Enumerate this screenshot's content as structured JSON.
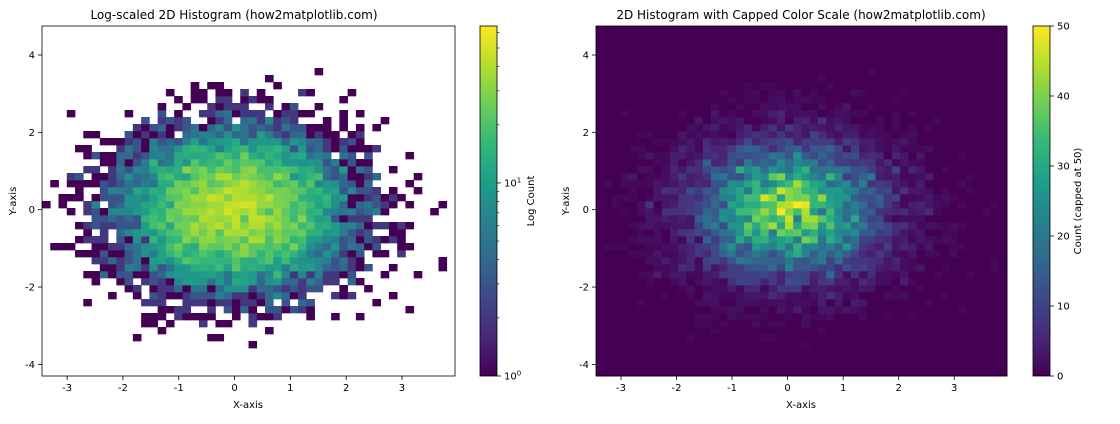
{
  "chart_data": [
    {
      "type": "heatmap",
      "title": "Log-scaled 2D Histogram (how2matplotlib.com)",
      "xlabel": "X-axis",
      "ylabel": "Y-axis",
      "xlim": [
        -3.45,
        3.95
      ],
      "ylim": [
        -4.3,
        4.75
      ],
      "xticks": [
        -3,
        -2,
        -1,
        0,
        1,
        2,
        3
      ],
      "yticks": [
        -4,
        -2,
        0,
        2,
        4
      ],
      "bins": 50,
      "distribution": {
        "kind": "2d-normal",
        "mean": [
          0,
          0
        ],
        "std": [
          1,
          1
        ],
        "samples": 10000
      },
      "color_scale": "log",
      "empty_bins": "transparent",
      "colormap": "viridis",
      "colorbar": {
        "label": "Log Count",
        "range": [
          1,
          65
        ],
        "ticks": [
          {
            "value": 1,
            "base": "10",
            "exp": "0"
          },
          {
            "value": 10,
            "base": "10",
            "exp": "1"
          }
        ]
      }
    },
    {
      "type": "heatmap",
      "title": "2D Histogram with Capped Color Scale (how2matplotlib.com)",
      "xlabel": "X-axis",
      "ylabel": "Y-axis",
      "xlim": [
        -3.45,
        3.95
      ],
      "ylim": [
        -4.3,
        4.75
      ],
      "xticks": [
        -3,
        -2,
        -1,
        0,
        1,
        2,
        3
      ],
      "yticks": [
        -4,
        -2,
        0,
        2,
        4
      ],
      "bins": 50,
      "distribution": {
        "kind": "2d-normal",
        "mean": [
          0,
          0
        ],
        "std": [
          1,
          1
        ],
        "samples": 10000
      },
      "color_scale": "linear",
      "cap": 50,
      "empty_bins": "zero-color",
      "colormap": "viridis",
      "colorbar": {
        "label": "Count (capped at 50)",
        "range": [
          0,
          50
        ],
        "ticks": [
          0,
          10,
          20,
          30,
          40,
          50
        ]
      }
    }
  ]
}
